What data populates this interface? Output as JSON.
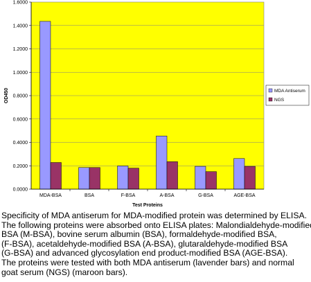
{
  "chart_data": {
    "type": "bar",
    "xlabel": "Test Proteins",
    "ylabel": "OD450",
    "ylim": [
      0,
      1.6
    ],
    "yticks": [
      0,
      0.2,
      0.4,
      0.6,
      0.8,
      1.0,
      1.2,
      1.4,
      1.6
    ],
    "ytick_labels": [
      "0.0000",
      "0.2000",
      "0.4000",
      "0.6000",
      "0.8000",
      "1.0000",
      "1.2000",
      "1.4000",
      "1.6000"
    ],
    "grid": "horizontal at 0.2-unit ticks",
    "legend_position": "right",
    "plot_background": "#ffff00",
    "categories": [
      "MDA-BSA",
      "BSA",
      "F-BSA",
      "A-BSA",
      "G-BSA",
      "AGE-BSA"
    ],
    "series": [
      {
        "name": "MDA Antiserum",
        "color": "#9999ff",
        "values": [
          1.435,
          0.185,
          0.198,
          0.455,
          0.195,
          0.262
        ]
      },
      {
        "name": "NGS",
        "color": "#993366",
        "values": [
          0.228,
          0.185,
          0.18,
          0.235,
          0.15,
          0.195
        ]
      }
    ]
  },
  "caption": {
    "lines": [
      "Specificity of MDA antiserum for MDA-modified protein was determined by ELISA.",
      "The following proteins were absorbed onto ELISA plates: Malondialdehyde-modified",
      "BSA (M-BSA), bovine serum albumin (BSA), formaldehyde-modified BSA,",
      "(F-BSA), acetaldehyde-modified BSA (A-BSA), glutaraldehyde-modified BSA",
      "(G-BSA) and advanced glycosylation end product-modified BSA (AGE-BSA).",
      "The proteins were tested with both MDA antiserum (lavender bars) and normal",
      "goat serum (NGS) (maroon bars)."
    ]
  }
}
